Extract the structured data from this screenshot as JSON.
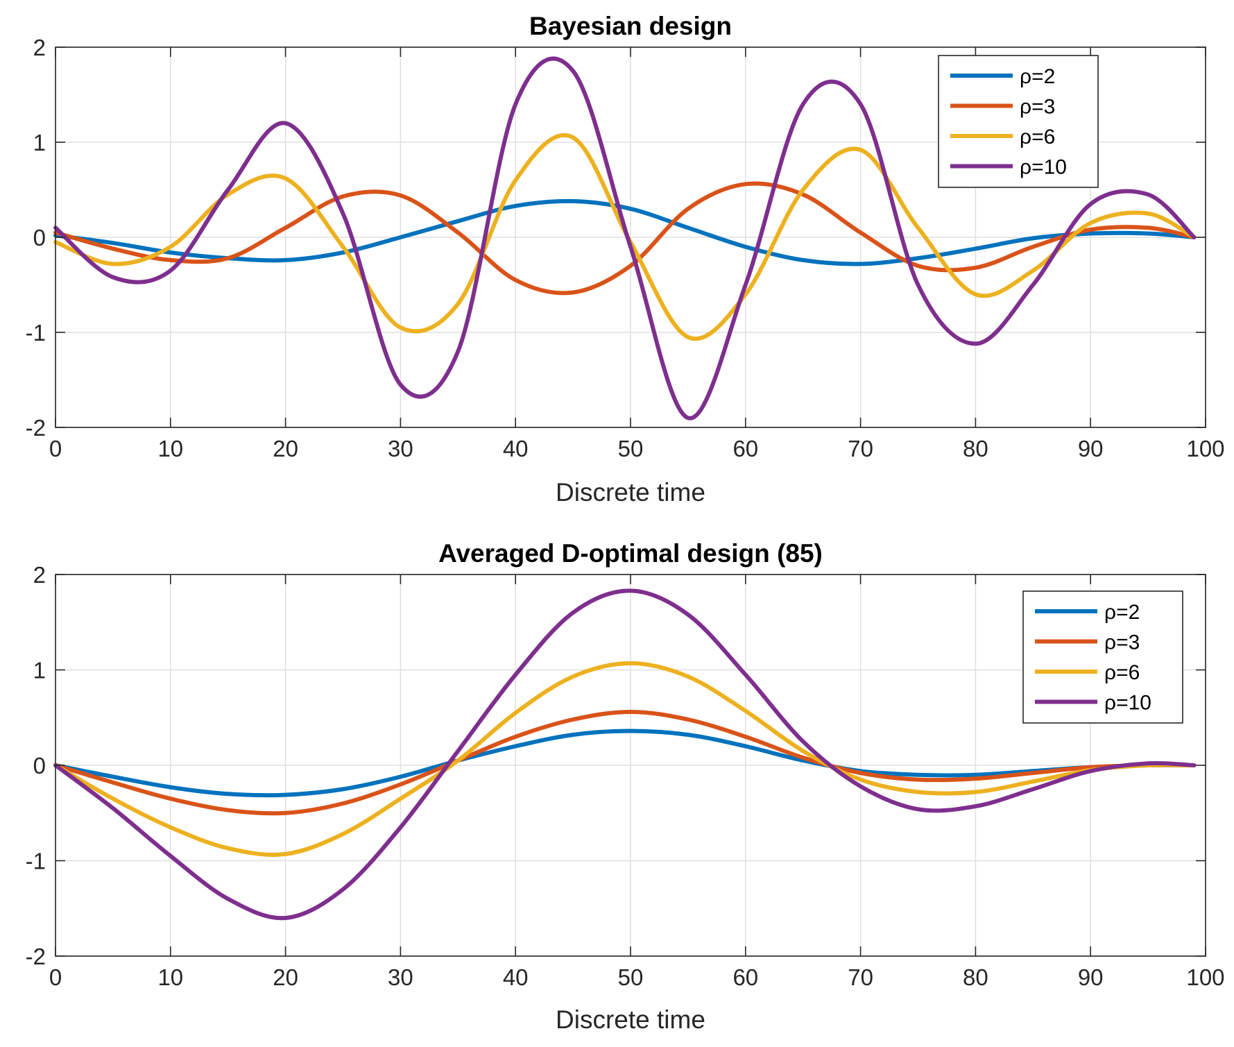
{
  "chart_data": [
    {
      "type": "line",
      "title": "Bayesian design",
      "xlabel": "Discrete time",
      "ylabel": "",
      "xlim": [
        0,
        100
      ],
      "ylim": [
        -2,
        2
      ],
      "xticks": [
        "0",
        "10",
        "20",
        "30",
        "40",
        "50",
        "60",
        "70",
        "80",
        "90",
        "100"
      ],
      "yticks": [
        "2",
        "1",
        "0",
        "-1",
        "-2"
      ],
      "grid": true,
      "legend_position": "top-right",
      "x": [
        0,
        5,
        10,
        15,
        20,
        25,
        30,
        35,
        40,
        45,
        50,
        55,
        60,
        65,
        70,
        75,
        80,
        85,
        90,
        95,
        99
      ],
      "series": [
        {
          "name": "ρ=2",
          "color": "#0072BD",
          "values": [
            0.02,
            -0.06,
            -0.16,
            -0.22,
            -0.24,
            -0.16,
            0.0,
            0.17,
            0.33,
            0.38,
            0.3,
            0.1,
            -0.1,
            -0.24,
            -0.28,
            -0.22,
            -0.12,
            -0.01,
            0.04,
            0.04,
            0.0
          ]
        },
        {
          "name": "ρ=3",
          "color": "#D95319",
          "values": [
            0.05,
            -0.12,
            -0.24,
            -0.22,
            0.1,
            0.43,
            0.44,
            0.05,
            -0.45,
            -0.58,
            -0.3,
            0.3,
            0.56,
            0.45,
            0.05,
            -0.3,
            -0.32,
            -0.1,
            0.08,
            0.1,
            0.0
          ]
        },
        {
          "name": "ρ=6",
          "color": "#EDB120",
          "values": [
            -0.05,
            -0.28,
            -0.1,
            0.45,
            0.62,
            -0.1,
            -0.95,
            -0.7,
            0.6,
            1.05,
            -0.05,
            -1.05,
            -0.6,
            0.5,
            0.92,
            0.1,
            -0.6,
            -0.35,
            0.15,
            0.25,
            0.0
          ]
        },
        {
          "name": "ρ=10",
          "color": "#7E2F8E",
          "values": [
            0.1,
            -0.42,
            -0.35,
            0.5,
            1.2,
            0.25,
            -1.55,
            -1.2,
            1.4,
            1.75,
            -0.1,
            -1.9,
            -0.5,
            1.4,
            1.4,
            -0.5,
            -1.12,
            -0.5,
            0.35,
            0.45,
            0.0
          ]
        }
      ]
    },
    {
      "type": "line",
      "title": "Averaged D-optimal design (85)",
      "xlabel": "Discrete time",
      "ylabel": "",
      "xlim": [
        0,
        100
      ],
      "ylim": [
        -2,
        2
      ],
      "xticks": [
        "0",
        "10",
        "20",
        "30",
        "40",
        "50",
        "60",
        "70",
        "80",
        "90",
        "100"
      ],
      "yticks": [
        "2",
        "1",
        "0",
        "-1",
        "-2"
      ],
      "grid": true,
      "legend_position": "top-right",
      "x": [
        0,
        5,
        10,
        15,
        20,
        25,
        30,
        35,
        40,
        45,
        50,
        55,
        60,
        65,
        70,
        75,
        80,
        85,
        90,
        95,
        99
      ],
      "series": [
        {
          "name": "ρ=2",
          "color": "#0072BD",
          "values": [
            0.0,
            -0.12,
            -0.23,
            -0.3,
            -0.31,
            -0.25,
            -0.12,
            0.05,
            0.2,
            0.32,
            0.36,
            0.32,
            0.2,
            0.05,
            -0.06,
            -0.1,
            -0.1,
            -0.06,
            -0.02,
            0.0,
            0.0
          ]
        },
        {
          "name": "ρ=3",
          "color": "#D95319",
          "values": [
            0.0,
            -0.18,
            -0.35,
            -0.47,
            -0.5,
            -0.4,
            -0.2,
            0.05,
            0.3,
            0.48,
            0.56,
            0.48,
            0.3,
            0.08,
            -0.08,
            -0.15,
            -0.14,
            -0.08,
            -0.02,
            0.0,
            0.0
          ]
        },
        {
          "name": "ρ=6",
          "color": "#EDB120",
          "values": [
            0.0,
            -0.35,
            -0.65,
            -0.87,
            -0.93,
            -0.72,
            -0.35,
            0.05,
            0.55,
            0.93,
            1.07,
            0.93,
            0.57,
            0.15,
            -0.15,
            -0.28,
            -0.28,
            -0.17,
            -0.05,
            0.0,
            0.0
          ]
        },
        {
          "name": "ρ=10",
          "color": "#7E2F8E",
          "values": [
            0.0,
            -0.45,
            -0.95,
            -1.4,
            -1.6,
            -1.3,
            -0.65,
            0.15,
            0.95,
            1.6,
            1.83,
            1.58,
            0.95,
            0.25,
            -0.22,
            -0.46,
            -0.43,
            -0.25,
            -0.06,
            0.02,
            0.0
          ]
        }
      ]
    }
  ]
}
